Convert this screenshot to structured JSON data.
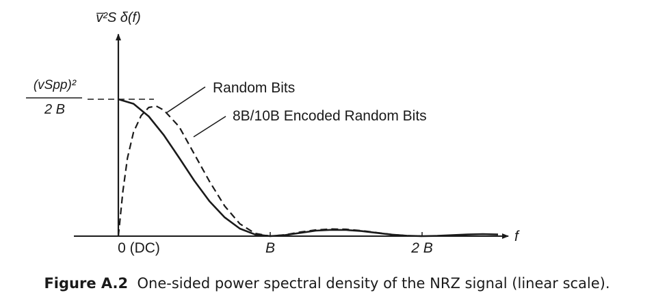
{
  "chart_data": {
    "type": "line",
    "x_axis_label": "f",
    "y_axis_label": "v̅²S δ(f)",
    "x_ticks": [
      {
        "value": 0,
        "label": "0 (DC)"
      },
      {
        "value": 1,
        "label": "B"
      },
      {
        "value": 2,
        "label": "2 B"
      }
    ],
    "y_marker": {
      "value": 1,
      "numerator": "(vSpp)²",
      "denominator": "2 B"
    },
    "xlim": [
      -0.35,
      2.7
    ],
    "ylim": [
      0,
      1.55
    ],
    "series": [
      {
        "name": "Random Bits",
        "style": "solid",
        "points": [
          [
            0,
            1.0
          ],
          [
            0.1,
            0.967
          ],
          [
            0.2,
            0.875
          ],
          [
            0.3,
            0.737
          ],
          [
            0.4,
            0.573
          ],
          [
            0.5,
            0.405
          ],
          [
            0.6,
            0.255
          ],
          [
            0.7,
            0.137
          ],
          [
            0.8,
            0.055
          ],
          [
            0.9,
            0.012
          ],
          [
            1.0,
            0.0
          ],
          [
            1.1,
            0.008
          ],
          [
            1.2,
            0.024
          ],
          [
            1.3,
            0.04
          ],
          [
            1.4,
            0.046
          ],
          [
            1.5,
            0.045
          ],
          [
            1.6,
            0.037
          ],
          [
            1.7,
            0.024
          ],
          [
            1.8,
            0.011
          ],
          [
            1.9,
            0.003
          ],
          [
            2.0,
            0.0
          ],
          [
            2.1,
            0.002
          ],
          [
            2.2,
            0.007
          ],
          [
            2.3,
            0.012
          ],
          [
            2.4,
            0.015
          ],
          [
            2.5,
            0.012
          ]
        ]
      },
      {
        "name": "8B/10B Encoded Random Bits",
        "style": "dashed",
        "points": [
          [
            0,
            0.0
          ],
          [
            0.03,
            0.33
          ],
          [
            0.06,
            0.57
          ],
          [
            0.1,
            0.76
          ],
          [
            0.15,
            0.88
          ],
          [
            0.2,
            0.94
          ],
          [
            0.25,
            0.95
          ],
          [
            0.3,
            0.92
          ],
          [
            0.4,
            0.8
          ],
          [
            0.5,
            0.6
          ],
          [
            0.6,
            0.4
          ],
          [
            0.7,
            0.22
          ],
          [
            0.8,
            0.09
          ],
          [
            0.9,
            0.02
          ],
          [
            1.0,
            0.0
          ],
          [
            1.1,
            0.01
          ],
          [
            1.2,
            0.03
          ],
          [
            1.3,
            0.045
          ],
          [
            1.4,
            0.052
          ],
          [
            1.5,
            0.05
          ],
          [
            1.6,
            0.04
          ],
          [
            1.7,
            0.026
          ],
          [
            1.8,
            0.012
          ],
          [
            1.9,
            0.003
          ],
          [
            2.0,
            0.0
          ]
        ]
      }
    ],
    "grid": false
  },
  "caption": {
    "label": "Figure A.2",
    "text": "One-sided power spectral density of the NRZ signal (linear scale)."
  }
}
